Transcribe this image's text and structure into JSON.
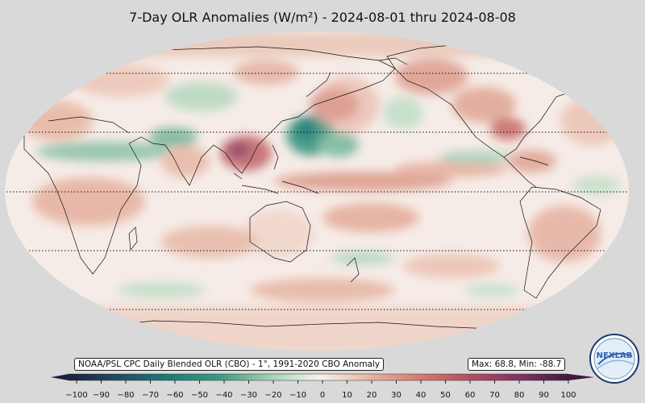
{
  "title": "7-Day OLR Anomalies (W/m²) - 2024-08-01 thru 2024-08-08",
  "source_label": "NOAA/PSL CPC Daily Blended OLR (CBO) - 1°, 1991-2020 CBO Anomaly",
  "stats_label": "Max: 68.8,  Min: -88.7",
  "logo_text": "NEXLAB",
  "colorbar": {
    "ticks": [
      "−100",
      "−90",
      "−80",
      "−70",
      "−60",
      "−50",
      "−40",
      "−30",
      "−20",
      "−10",
      "0",
      "10",
      "20",
      "30",
      "40",
      "50",
      "60",
      "70",
      "80",
      "90",
      "100"
    ],
    "min": -100,
    "max": 100,
    "negative_colors": [
      "#1d1f3c",
      "#1f4d66",
      "#1f7a74",
      "#3c9882",
      "#6db498",
      "#a0cfb0",
      "#cbe4cf",
      "#f2f0ec"
    ],
    "positive_colors": [
      "#f2f0ec",
      "#f1d6ca",
      "#e3aa97",
      "#d27e70",
      "#bb5762",
      "#963d63",
      "#6e2c5a",
      "#3e1a3a"
    ]
  },
  "colors": {
    "background": "#d9d9d9",
    "ocean_base": "#f6ece7",
    "coast": "#111111"
  }
}
